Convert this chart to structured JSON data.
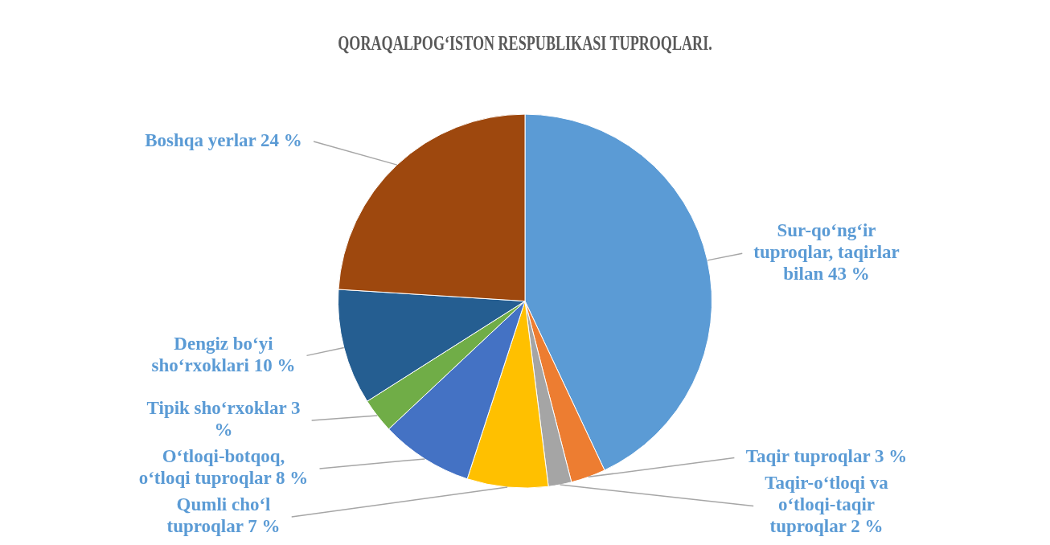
{
  "chart_data": {
    "type": "pie",
    "title": "QORAQALPOG‘ISTON RESPUBLIKASI TUPROQLARI.",
    "categories": [
      "Sur-qo‘ng‘ir tuproqlar, taqirlar bilan",
      "Taqir tuproqlar",
      "Taqir-o‘tloqi va o‘tloqi-taqir tuproqlar",
      "Qumli cho‘l tuproqlar",
      "O‘tloqi-botqoq, o‘tloqi tuproqlar",
      "Tipik sho‘rxoklar",
      "Dengiz bo‘yi sho‘rxoklari",
      "Boshqa yerlar"
    ],
    "values": [
      43,
      3,
      2,
      7,
      8,
      3,
      10,
      24
    ],
    "value_labels": [
      "43 %",
      "3 %",
      "2 %",
      "7 %",
      "8 %",
      "3 %",
      "10 %",
      "24 %"
    ],
    "colors": [
      "#5b9bd5",
      "#ed7d31",
      "#a5a5a5",
      "#ffc000",
      "#4472c4",
      "#70ad47",
      "#255e91",
      "#9e480e"
    ],
    "legend": false
  }
}
